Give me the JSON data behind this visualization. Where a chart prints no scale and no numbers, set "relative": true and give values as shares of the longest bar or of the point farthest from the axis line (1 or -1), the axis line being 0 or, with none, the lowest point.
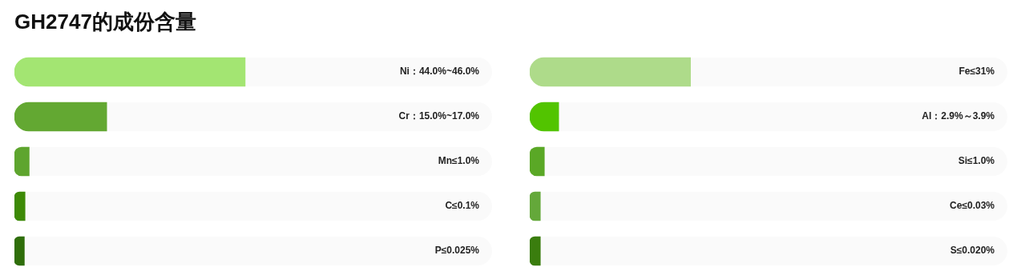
{
  "chart_data": [
    {
      "type": "bar",
      "title": "GH2747的成份含量",
      "orientation": "horizontal",
      "relative": true,
      "categories": [
        "Ni：44.0%~46.0%",
        "Cr：15.0%~17.0%",
        "Mn≤1.0%",
        "C≤0.1%",
        "P≤0.025%"
      ],
      "values": [
        1,
        0.4,
        0.064,
        0.046,
        0.043
      ],
      "colors": [
        "#a3e572",
        "#63a832",
        "#5ea52e",
        "#3d8a06",
        "#2f6e0a"
      ]
    },
    {
      "type": "bar",
      "orientation": "horizontal",
      "relative": true,
      "categories": [
        "Fe≤31%",
        "Al：2.9%～3.9%",
        "Si≤1.0%",
        "Ce≤0.03%",
        "S≤0.020%"
      ],
      "values": [
        1,
        0.18,
        0.091,
        0.066,
        0.066
      ],
      "colors": [
        "#aedb8a",
        "#52c400",
        "#5aa826",
        "#64a83a",
        "#3a7d0e"
      ]
    }
  ]
}
